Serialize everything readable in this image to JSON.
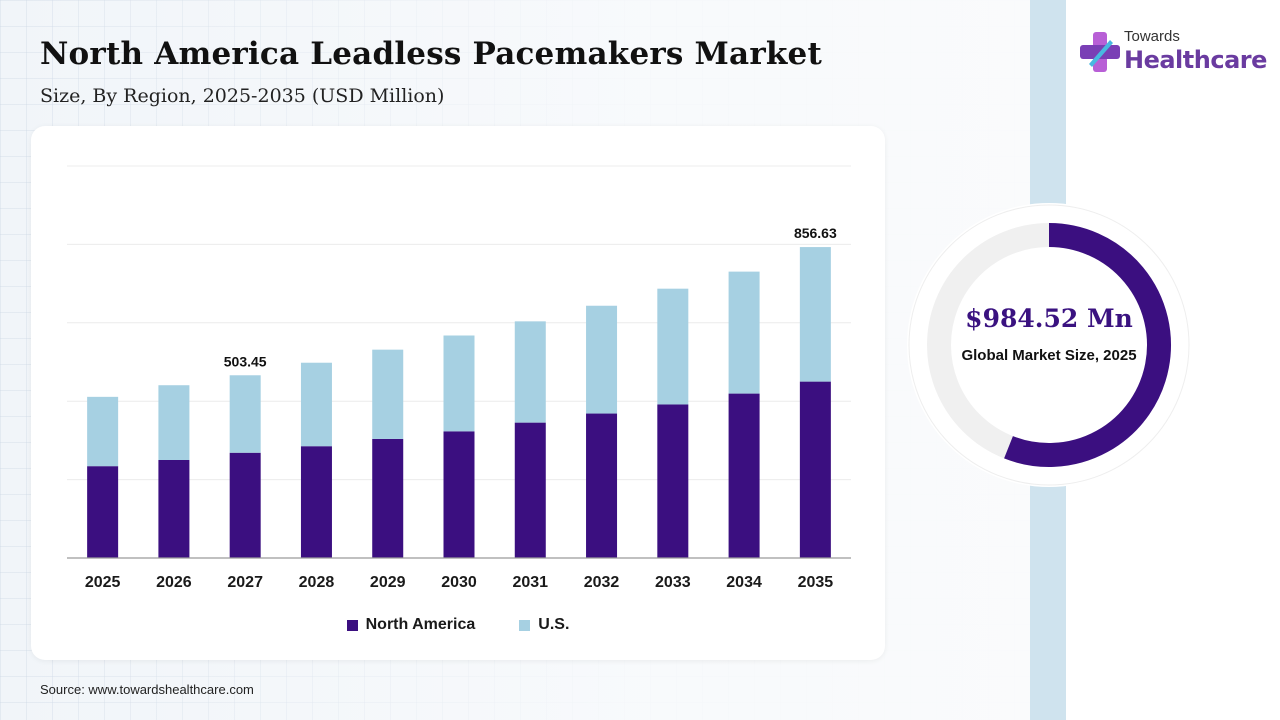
{
  "header": {
    "title": "North America Leadless Pacemakers Market",
    "subtitle": "Size, By Region, 2025-2035 (USD Million)"
  },
  "brand": {
    "line1": "Towards",
    "line2": "Healthcare",
    "icon": "medical-cross-icon",
    "color": "#6a3ba0"
  },
  "source": "Source: www.towardshealthcare.com",
  "highlight": {
    "value": "$984.52 Mn",
    "label": "Global Market Size, 2025",
    "share": 0.56
  },
  "chart_data": {
    "type": "bar",
    "stacked": true,
    "categories": [
      "2025",
      "2026",
      "2027",
      "2028",
      "2029",
      "2030",
      "2031",
      "2032",
      "2033",
      "2034",
      "2035"
    ],
    "series": [
      {
        "name": "North America",
        "color": "#3b0f80",
        "values": [
          253,
          270,
          290,
          308,
          328,
          349,
          373,
          398,
          423,
          453,
          486
        ]
      },
      {
        "name": "U.S.",
        "color": "#a6d0e2",
        "values": [
          191,
          206,
          213.45,
          230,
          246,
          264,
          279,
          297,
          319,
          336,
          370.63
        ]
      }
    ],
    "totals": [
      444,
      476,
      503.45,
      538,
      574,
      613,
      652,
      695,
      742,
      789,
      856.63
    ],
    "data_labels": [
      {
        "category": "2027",
        "text": "503.45"
      },
      {
        "category": "2035",
        "text": "856.63"
      }
    ],
    "ylim": [
      0,
      1080
    ],
    "grid": true,
    "legend": "bottom-center"
  }
}
